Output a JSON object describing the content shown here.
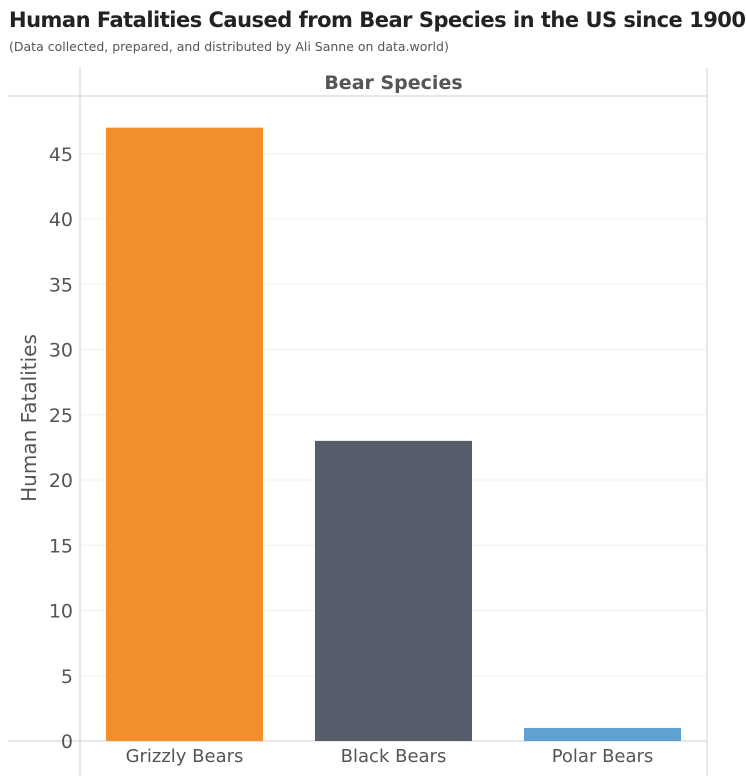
{
  "title": "Human Fatalities Caused from Bear Species in the US since 1900",
  "subtitle": "(Data collected, prepared, and distributed by Ali Sanne on data.world)",
  "chart_data": {
    "type": "bar",
    "column_header": "Bear Species",
    "ylabel": "Human Fatalities",
    "categories": [
      "Grizzly Bears",
      "Black Bears",
      "Polar Bears"
    ],
    "values": [
      47,
      23,
      1
    ],
    "colors": [
      "#F28E2B",
      "#575E6B",
      "#5FA2D2"
    ],
    "ylim": [
      0,
      48
    ],
    "yticks": [
      0,
      5,
      10,
      15,
      20,
      25,
      30,
      35,
      40,
      45
    ],
    "grid": true,
    "legend": "none"
  }
}
